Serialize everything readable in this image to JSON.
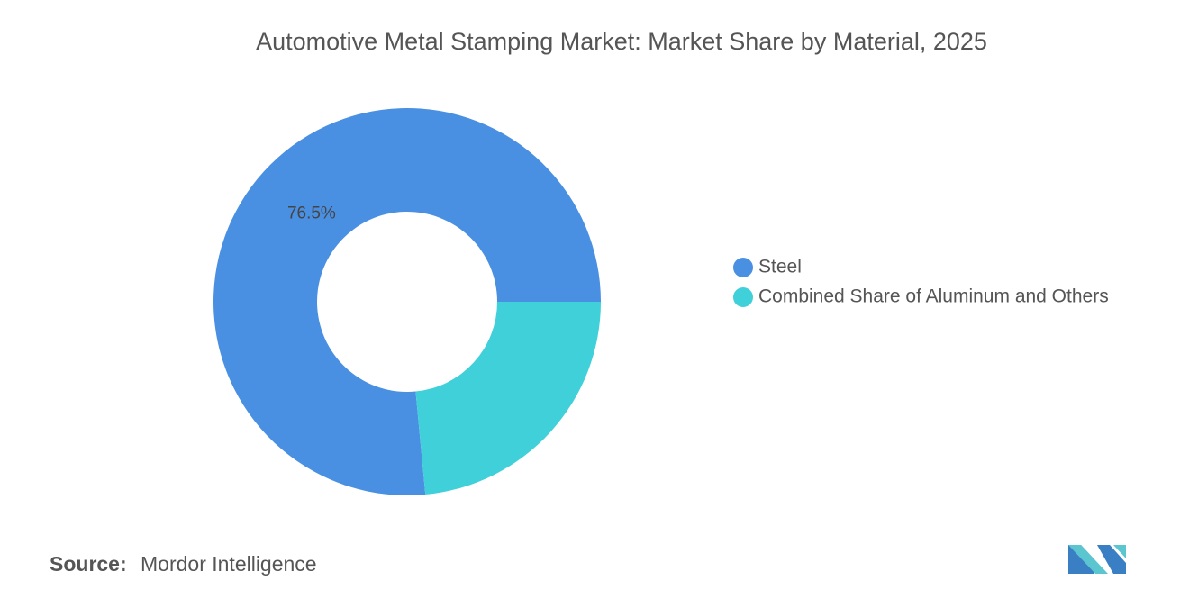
{
  "chart_data": {
    "type": "donut",
    "title": "Automotive Metal Stamping Market: Market Share by Material, 2025",
    "categories": [
      "Steel",
      "Combined Share of Aluminum and Others"
    ],
    "values": [
      76.5,
      23.5
    ],
    "value_labels": [
      "76.5%",
      null
    ],
    "colors": [
      "#4a90e2",
      "#40d0da"
    ],
    "legend": "right"
  },
  "source": {
    "label": "Source:",
    "text": "Mordor Intelligence"
  }
}
